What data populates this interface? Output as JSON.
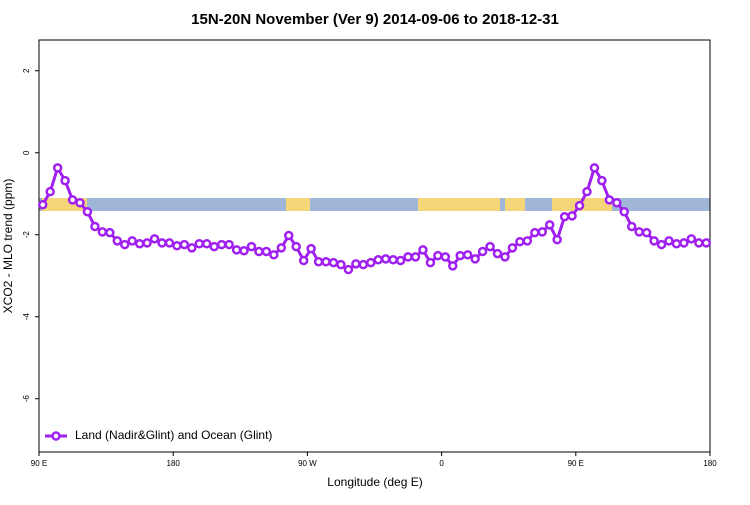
{
  "chart_data": {
    "type": "line",
    "title": "15N-20N November (Ver 9)   2014-09-06 to 2018-12-31",
    "x_label": "Longitude (deg E)",
    "y_label": "XCO2 - MLO trend (ppm)",
    "xlim": [
      90,
      540
    ],
    "ylim": [
      -7.3,
      2.75
    ],
    "xticks": [
      {
        "value": 90,
        "label": "90 E"
      },
      180,
      {
        "value": 270,
        "label": "90 W"
      },
      {
        "value": 360,
        "label": "0"
      },
      {
        "value": 450,
        "label": "90 E"
      },
      {
        "value": 540,
        "label": "180"
      }
    ],
    "yticks": [
      2,
      0,
      -2,
      -4,
      -6
    ],
    "legend": "bottomleft",
    "x": [
      92.5,
      97.5,
      102.5,
      107.5,
      112.5,
      117.5,
      122.5,
      127.5,
      132.5,
      137.5,
      142.5,
      147.5,
      152.5,
      157.5,
      162.5,
      167.5,
      172.5,
      177.5,
      182.5,
      187.5,
      192.5,
      197.5,
      202.5,
      207.5,
      212.5,
      217.5,
      222.5,
      227.5,
      232.5,
      237.5,
      242.5,
      247.5,
      252.5,
      257.5,
      262.5,
      267.5,
      272.5,
      277.5,
      282.5,
      287.5,
      292.5,
      297.5,
      302.5,
      307.5,
      312.5,
      317.5,
      322.5,
      327.5,
      332.5,
      337.5,
      342.5,
      347.5,
      352.5,
      357.5,
      362.5,
      367.5,
      372.5,
      377.5,
      382.5,
      387.5,
      392.5,
      397.5,
      402.5,
      407.5,
      412.5,
      417.5,
      422.5,
      427.5,
      432.5,
      437.5,
      442.5,
      447.5,
      452.5,
      457.5,
      462.5,
      467.5,
      472.5,
      477.5,
      482.5,
      487.5,
      492.5,
      497.5,
      502.5,
      507.5,
      512.5,
      517.5,
      522.5,
      527.5,
      532.5,
      537.5
    ],
    "series": [
      {
        "name": "Land (Nadir&Glint) and Ocean (Glint)",
        "color": "#a020f0",
        "values": [
          -1.27,
          -0.95,
          -0.37,
          -0.68,
          -1.15,
          -1.22,
          -1.44,
          -1.8,
          -1.93,
          -1.95,
          -2.15,
          -2.24,
          -2.15,
          -2.22,
          -2.2,
          -2.1,
          -2.2,
          -2.2,
          -2.27,
          -2.24,
          -2.32,
          -2.22,
          -2.22,
          -2.29,
          -2.24,
          -2.24,
          -2.37,
          -2.39,
          -2.29,
          -2.41,
          -2.41,
          -2.49,
          -2.32,
          -2.02,
          -2.29,
          -2.63,
          -2.34,
          -2.66,
          -2.66,
          -2.68,
          -2.73,
          -2.85,
          -2.71,
          -2.73,
          -2.68,
          -2.61,
          -2.59,
          -2.61,
          -2.63,
          -2.54,
          -2.54,
          -2.37,
          -2.68,
          -2.51,
          -2.54,
          -2.76,
          -2.51,
          -2.49,
          -2.59,
          -2.41,
          -2.29,
          -2.46,
          -2.54,
          -2.32,
          -2.17,
          -2.15,
          -1.95,
          -1.93,
          -1.76,
          -2.12,
          -1.56,
          -1.54,
          -1.29,
          -0.95,
          -0.37,
          -0.68,
          -1.15,
          -1.22,
          -1.44,
          -1.8,
          -1.93,
          -1.95,
          -2.15,
          -2.24,
          -2.15,
          -2.22,
          -2.2,
          -2.1,
          -2.2,
          -2.2
        ]
      }
    ]
  }
}
